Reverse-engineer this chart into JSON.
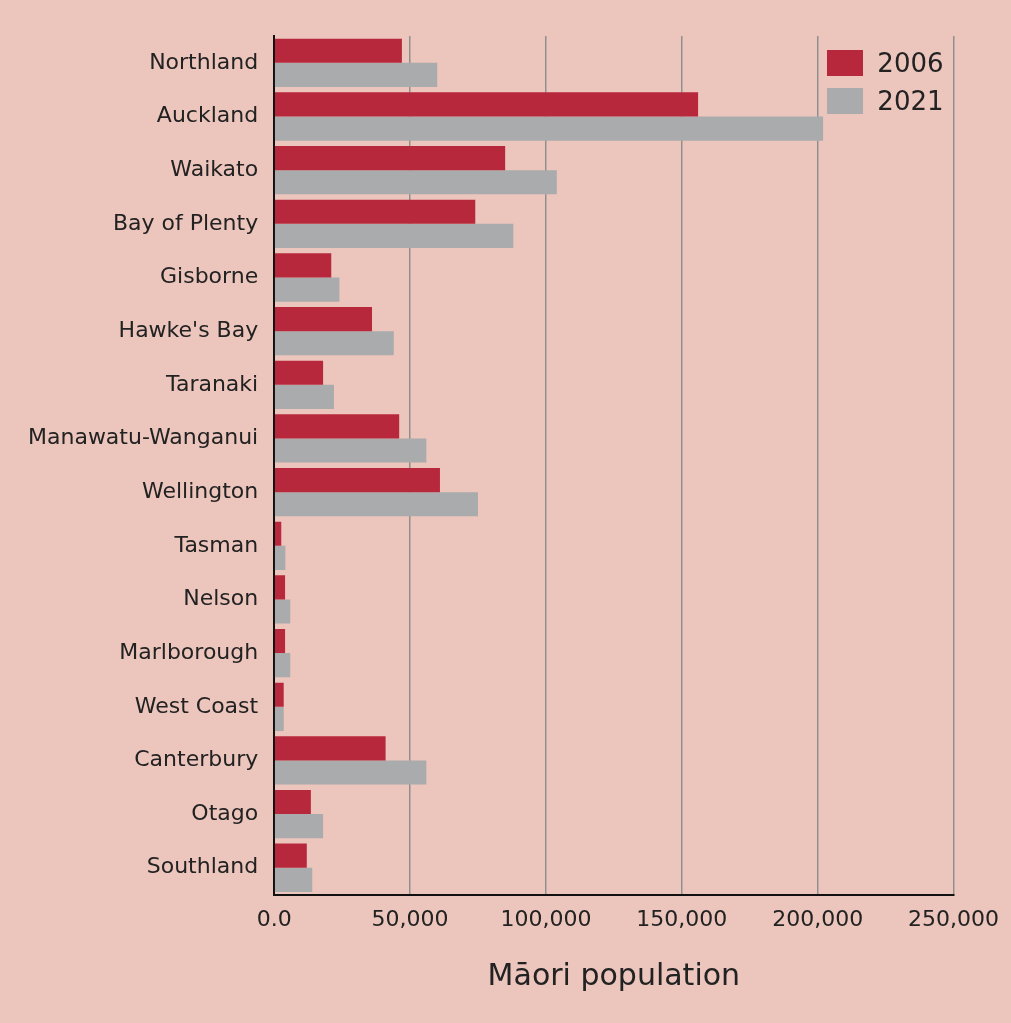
{
  "chart_data": {
    "type": "bar",
    "orientation": "horizontal",
    "xlabel": "Māori population",
    "categories": [
      "Northland",
      "Auckland",
      "Waikato",
      "Bay of Plenty",
      "Gisborne",
      "Hawke's Bay",
      "Taranaki",
      "Manawatu-Wanganui",
      "Wellington",
      "Tasman",
      "Nelson",
      "Marlborough",
      "West Coast",
      "Canterbury",
      "Otago",
      "Southland"
    ],
    "series": [
      {
        "name": "2006",
        "color": "#b8283c",
        "values": [
          47000,
          156000,
          85000,
          74000,
          21000,
          36000,
          18000,
          46000,
          61000,
          2600,
          4000,
          4000,
          3500,
          41000,
          13500,
          12000
        ]
      },
      {
        "name": "2021",
        "color": "#a9abad",
        "values": [
          60000,
          202000,
          104000,
          88000,
          24000,
          44000,
          22000,
          56000,
          75000,
          4100,
          5900,
          5900,
          3500,
          56000,
          18000,
          14000
        ]
      }
    ],
    "xlim": [
      0,
      250000
    ],
    "xticks": [
      {
        "value": 0,
        "label": "0.0"
      },
      {
        "value": 50000,
        "label": "50,000"
      },
      {
        "value": 100000,
        "label": "100,000"
      },
      {
        "value": 150000,
        "label": "150,000"
      },
      {
        "value": 200000,
        "label": "200,000"
      },
      {
        "value": 250000,
        "label": "250,000"
      }
    ],
    "grid": "x",
    "legend": "top right"
  }
}
